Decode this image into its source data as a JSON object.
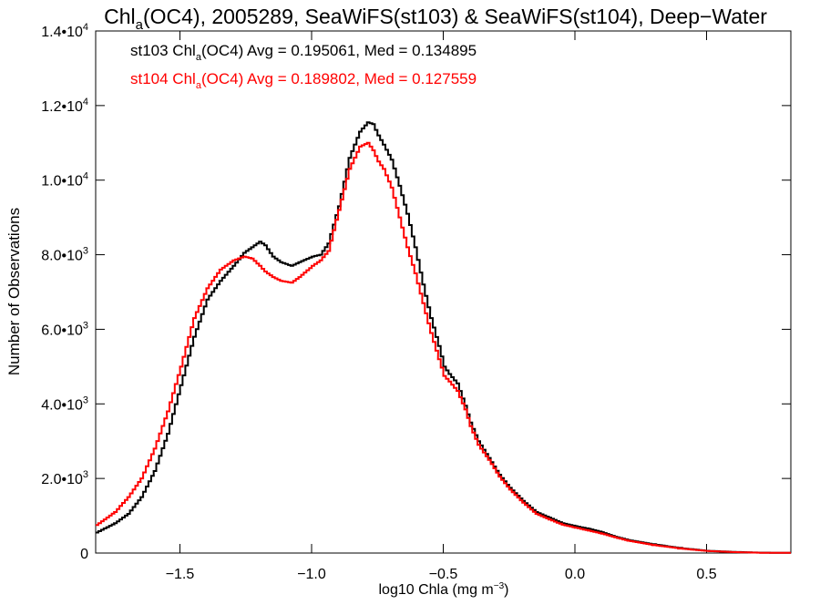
{
  "chart_data": {
    "type": "line",
    "title": {
      "pre": "Chl",
      "sub": "a",
      "post": "(OC4), 2005289, SeaWiFS(st103) & SeaWiFS(st104), Deep−Water"
    },
    "xlabel": {
      "pre": "log10 Chla (mg m",
      "sup": "−3",
      "post": ")"
    },
    "ylabel": "Number of Observations",
    "xlim": [
      -1.82,
      0.82
    ],
    "ylim": [
      0,
      14000
    ],
    "grid": false,
    "legend_position": "top-left",
    "xticks": [
      {
        "value": -1.5,
        "label": "−1.5"
      },
      {
        "value": -1.0,
        "label": "−1.0"
      },
      {
        "value": -0.5,
        "label": "−0.5"
      },
      {
        "value": 0.0,
        "label": "0.0"
      },
      {
        "value": 0.5,
        "label": "0.5"
      }
    ],
    "yticks": [
      {
        "value": 0,
        "mant": "0",
        "exp": ""
      },
      {
        "value": 2000,
        "mant": "2.0•10",
        "exp": "3"
      },
      {
        "value": 4000,
        "mant": "4.0•10",
        "exp": "3"
      },
      {
        "value": 6000,
        "mant": "6.0•10",
        "exp": "3"
      },
      {
        "value": 8000,
        "mant": "8.0•10",
        "exp": "3"
      },
      {
        "value": 10000,
        "mant": "1.0•10",
        "exp": "4"
      },
      {
        "value": 12000,
        "mant": "1.2•10",
        "exp": "4"
      },
      {
        "value": 14000,
        "mant": "1.4•10",
        "exp": "4"
      }
    ],
    "series": [
      {
        "label": {
          "pre": "st103 Chl",
          "sub": "a",
          "post": "(OC4) Avg = 0.195061, Med = 0.134895"
        },
        "color": "#000000",
        "x": [
          -1.82,
          -1.75,
          -1.7,
          -1.65,
          -1.6,
          -1.55,
          -1.5,
          -1.45,
          -1.4,
          -1.35,
          -1.3,
          -1.26,
          -1.23,
          -1.2,
          -1.18,
          -1.15,
          -1.12,
          -1.08,
          -1.05,
          -1.0,
          -0.97,
          -0.94,
          -0.9,
          -0.86,
          -0.82,
          -0.79,
          -0.77,
          -0.75,
          -0.73,
          -0.7,
          -0.67,
          -0.64,
          -0.61,
          -0.58,
          -0.55,
          -0.52,
          -0.5,
          -0.48,
          -0.45,
          -0.42,
          -0.4,
          -0.37,
          -0.33,
          -0.29,
          -0.25,
          -0.2,
          -0.15,
          -0.1,
          -0.05,
          0.0,
          0.05,
          0.1,
          0.15,
          0.2,
          0.3,
          0.4,
          0.5,
          0.6,
          0.7,
          0.82
        ],
        "y": [
          550,
          800,
          1050,
          1500,
          2200,
          3200,
          4500,
          5800,
          6800,
          7300,
          7700,
          8050,
          8200,
          8350,
          8250,
          7950,
          7800,
          7700,
          7800,
          7950,
          8000,
          8300,
          9300,
          10600,
          11300,
          11550,
          11500,
          11200,
          10950,
          10550,
          9850,
          9100,
          8200,
          7200,
          6300,
          5550,
          5000,
          4800,
          4550,
          3950,
          3500,
          3000,
          2550,
          2100,
          1750,
          1400,
          1100,
          950,
          800,
          720,
          650,
          560,
          440,
          350,
          230,
          130,
          60,
          30,
          10,
          5
        ]
      },
      {
        "label": {
          "pre": "st104 Chl",
          "sub": "a",
          "post": "(OC4) Avg = 0.189802, Med = 0.127559"
        },
        "color": "#ff0000",
        "x": [
          -1.82,
          -1.75,
          -1.7,
          -1.65,
          -1.6,
          -1.55,
          -1.5,
          -1.45,
          -1.4,
          -1.35,
          -1.3,
          -1.26,
          -1.23,
          -1.2,
          -1.18,
          -1.15,
          -1.12,
          -1.08,
          -1.05,
          -1.0,
          -0.97,
          -0.94,
          -0.9,
          -0.86,
          -0.82,
          -0.79,
          -0.77,
          -0.75,
          -0.73,
          -0.7,
          -0.67,
          -0.64,
          -0.61,
          -0.58,
          -0.55,
          -0.52,
          -0.5,
          -0.48,
          -0.45,
          -0.42,
          -0.4,
          -0.37,
          -0.33,
          -0.29,
          -0.25,
          -0.2,
          -0.15,
          -0.1,
          -0.05,
          0.0,
          0.05,
          0.1,
          0.15,
          0.2,
          0.3,
          0.4,
          0.5,
          0.6,
          0.7,
          0.82
        ],
        "y": [
          750,
          1100,
          1500,
          2000,
          2800,
          3800,
          5000,
          6300,
          7100,
          7600,
          7850,
          7950,
          7900,
          7700,
          7550,
          7400,
          7300,
          7250,
          7400,
          7700,
          7850,
          8100,
          9200,
          10300,
          10900,
          11000,
          10800,
          10500,
          10300,
          9800,
          9000,
          8200,
          7500,
          6700,
          5900,
          5200,
          4750,
          4600,
          4350,
          3850,
          3400,
          2900,
          2500,
          2050,
          1700,
          1350,
          1050,
          900,
          760,
          680,
          600,
          520,
          420,
          330,
          210,
          120,
          55,
          25,
          8,
          4
        ]
      }
    ]
  }
}
